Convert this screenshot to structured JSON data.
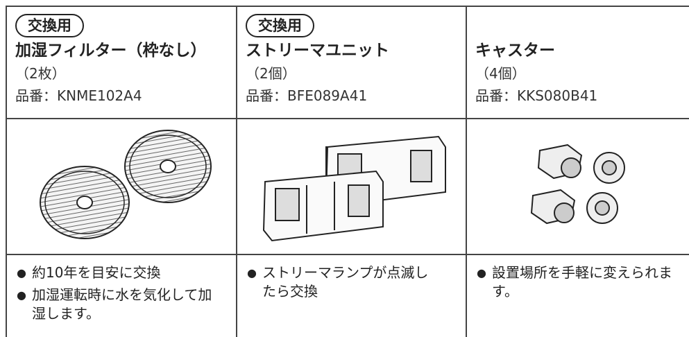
{
  "columns": [
    {
      "tag": "交換用",
      "name": "加湿フィルター（枠なし）",
      "quantity": "（2枚）",
      "part_number": "品番：KNME102A4",
      "notes": [
        "約10年を目安に交換",
        "加湿運転時に水を気化して加湿します。"
      ]
    },
    {
      "tag": "交換用",
      "name": "ストリーマユニット",
      "quantity": "（2個）",
      "part_number": "品番：BFE089A41",
      "notes": [
        "ストリーマランプが点滅したら交換"
      ]
    },
    {
      "name": "キャスター",
      "quantity": "（4個）",
      "part_number": "品番：KKS080B41",
      "notes": [
        "設置場所を手軽に変えられます。"
      ]
    }
  ]
}
